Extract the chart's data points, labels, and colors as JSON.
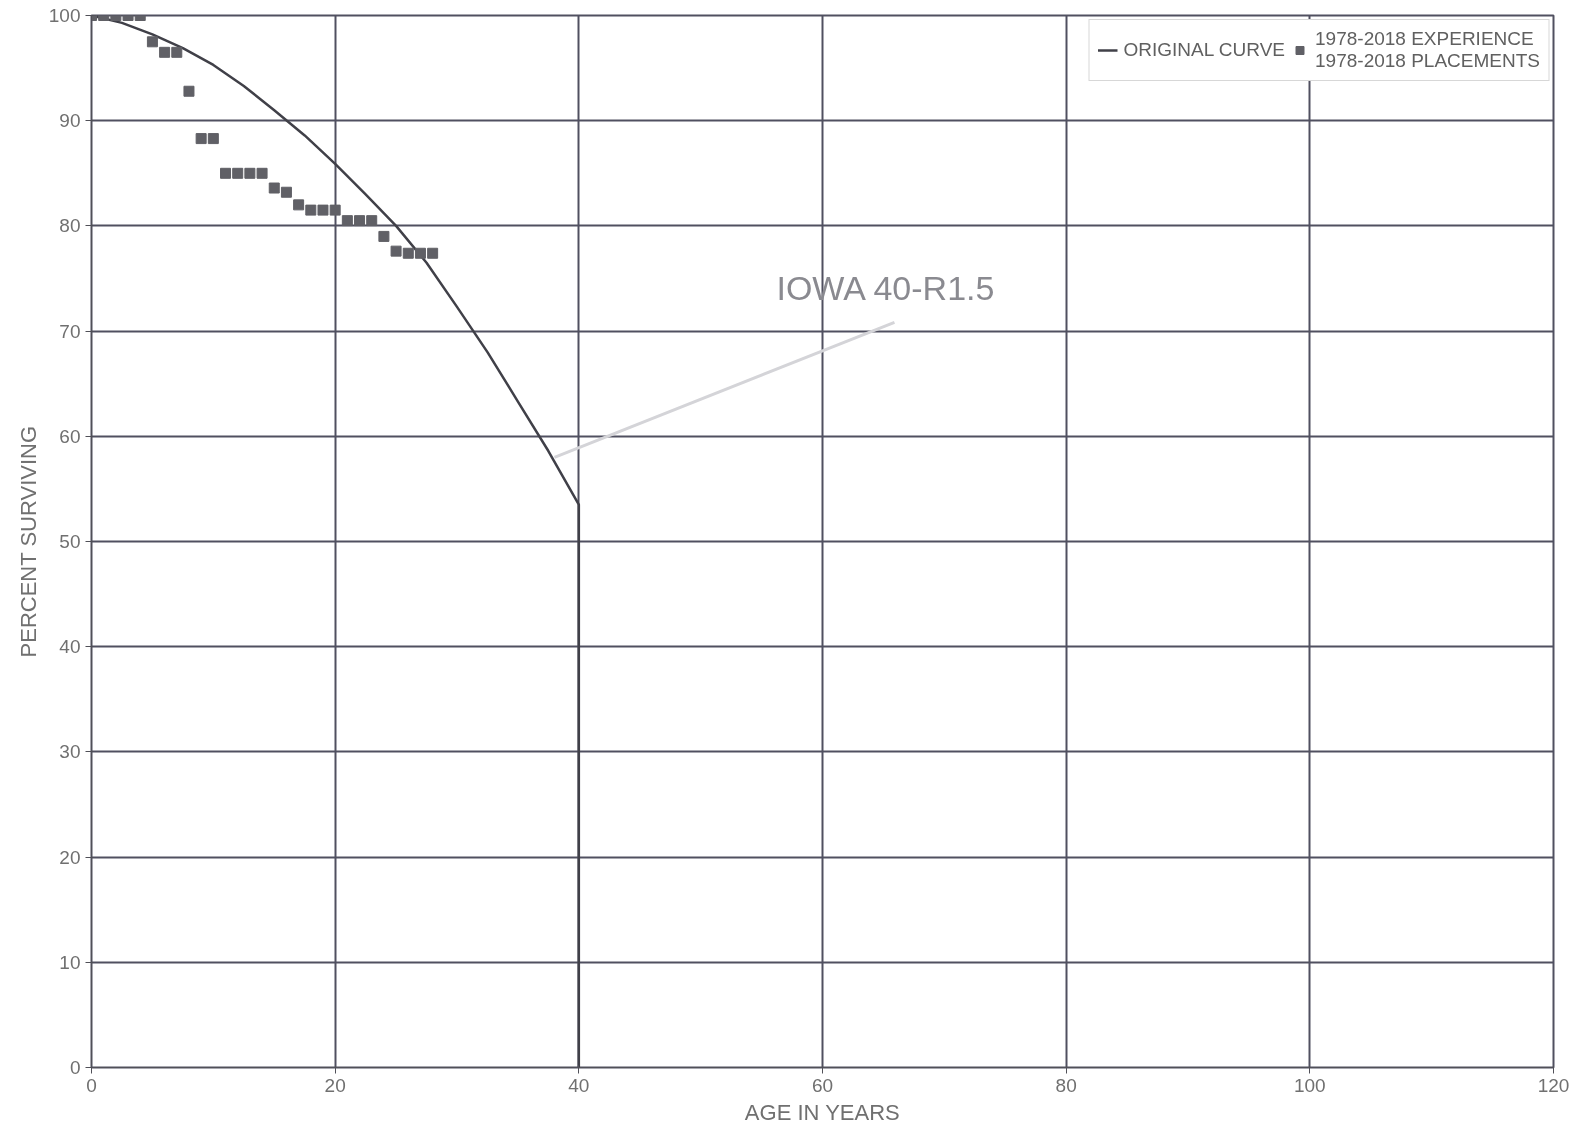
{
  "chart_data": {
    "type": "line",
    "xlabel": "AGE IN YEARS",
    "ylabel": "PERCENT SURVIVING",
    "series": [
      {
        "name": "ORIGINAL CURVE",
        "color": "#404048",
        "x": [
          0,
          2.5,
          5,
          7.5,
          10,
          12.5,
          15,
          17.5,
          20,
          22.5,
          25,
          27.5,
          30,
          32.5,
          35,
          37.5,
          40,
          40
        ],
        "values": [
          100,
          99.3,
          98.2,
          96.9,
          95.3,
          93.3,
          91,
          88.6,
          85.9,
          83,
          80,
          76.5,
          72.3,
          68,
          63.3,
          58.6,
          53.5,
          0
        ]
      },
      {
        "name": "1978-2018 EXPERIENCE\n1978-2018 PLACEMENTS",
        "type": "scatter",
        "marker": "square",
        "color": "#606066",
        "x": [
          0,
          1,
          2,
          3,
          4,
          5,
          6,
          7,
          8,
          9,
          10,
          11,
          12,
          13,
          14,
          15,
          16,
          17,
          18,
          19,
          20,
          21,
          22,
          23,
          24,
          25,
          26,
          27,
          28
        ],
        "values": [
          100,
          100,
          100,
          100,
          100,
          97.5,
          96.5,
          96.5,
          92.8,
          88.3,
          88.3,
          85,
          85,
          85,
          85,
          83.6,
          83.2,
          82,
          81.5,
          81.5,
          81.5,
          80.5,
          80.5,
          80.5,
          79,
          77.6,
          77.4,
          77.4,
          77.4
        ]
      }
    ],
    "annotations": [
      {
        "text": "IOWA 40-R1.5",
        "x": 38,
        "y": 58
      }
    ],
    "xlim": [
      0,
      120
    ],
    "xticks": [
      0,
      20,
      40,
      60,
      80,
      100,
      120
    ],
    "ylim": [
      0,
      100
    ],
    "yticks": [
      0,
      10,
      20,
      30,
      40,
      50,
      60,
      70,
      80,
      90,
      100
    ],
    "grid": true,
    "legend": "top right"
  }
}
